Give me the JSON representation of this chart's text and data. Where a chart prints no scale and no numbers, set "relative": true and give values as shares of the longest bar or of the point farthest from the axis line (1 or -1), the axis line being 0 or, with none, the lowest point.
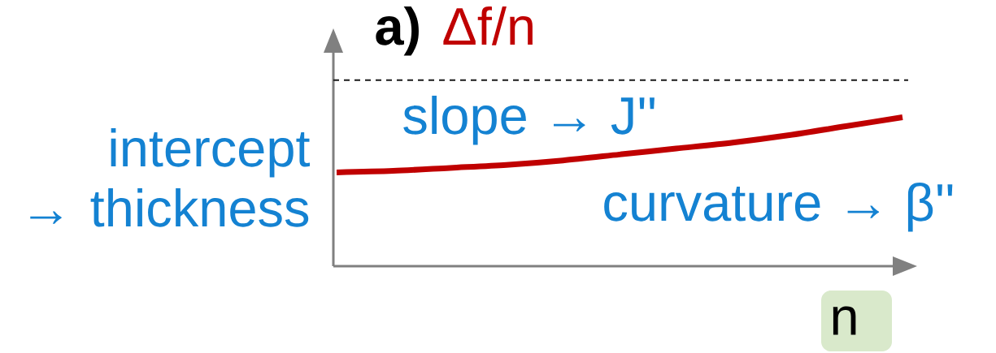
{
  "chart_data": {
    "type": "line",
    "title": "a)",
    "ylabel": "Δf/n",
    "xlabel": "n",
    "categories": [
      null,
      null,
      null,
      null,
      null,
      null,
      null,
      null,
      null,
      null,
      null
    ],
    "relative": true,
    "marker": "none",
    "line_style": "solid",
    "series": [
      {
        "color": "#c00000",
        "values": [
          0.63,
          0.64,
          0.66,
          0.68,
          0.71,
          0.75,
          0.79,
          0.83,
          0.88,
          0.94,
          1
        ]
      }
    ],
    "ref_lines": [
      {
        "axis": "y",
        "value": 1.25,
        "color": "#1a1a1a",
        "line_style": "dashed"
      }
    ],
    "annotations": [
      "slope → J''",
      "intercept → thickness",
      "curvature → β''"
    ]
  }
}
